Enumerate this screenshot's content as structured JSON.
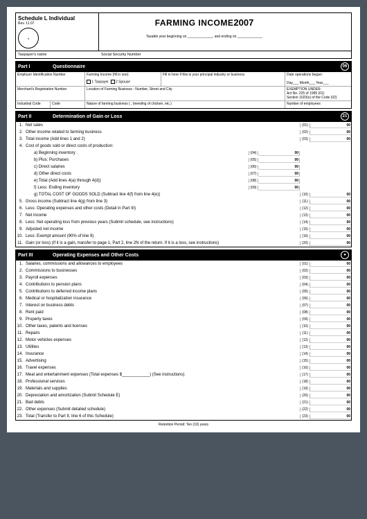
{
  "header": {
    "schedule": "Schedule L Individual",
    "rev": "Rev. 11.07",
    "title": "FARMING INCOME",
    "year": "2007",
    "taxable_year_prefix": "Taxable year beginning on",
    "taxable_year_middle": "and ending on"
  },
  "taxpayer": {
    "name_label": "Taxpayer's name",
    "ssn_label": "Social Security Number"
  },
  "part1": {
    "part_label": "Part I",
    "title": "Questionnaire",
    "badge": "06",
    "ein_label": "Employer Identification Number",
    "farming_income_label": "Farming Income (fill in one)",
    "opt1": "1 Taxpayer",
    "opt2": "2 Spouse",
    "principal_label": "Fill in here if this is your principal industry or business",
    "date_ops_label": "Date operations began:",
    "date_day": "Day",
    "date_month": "Month",
    "date_year": "Year",
    "merchant_label": "Merchant's Registration Number",
    "location_label": "Location of Farming Business - Number, Street and City",
    "exemption_label": "EXEMPTION UNDER:",
    "exemption_act": "Act No. 225 of 1995",
    "exemption_act_code": "(01)",
    "exemption_section": "Section 1023(s) of the Code",
    "exemption_section_code": "(02)",
    "industrial_label": "Industrial Code",
    "code_label": "Code",
    "nature_label": "Nature of farming business ( , breeding of chicken, etc.)",
    "employees_label": "Number of employees"
  },
  "part2": {
    "part_label": "Part II",
    "title": "Determination of Gain or Loss",
    "badge": "21",
    "lines": [
      {
        "n": "1.",
        "label": "Net sales",
        "code": "(01)",
        "amt": "00",
        "outer": true
      },
      {
        "n": "2.",
        "label": "Other income related to farming business",
        "code": "(02)",
        "amt": "00",
        "outer": true
      },
      {
        "n": "3.",
        "label": "Total income (Add lines 1 and 2)",
        "code": "(03)",
        "amt": "00",
        "outer": true
      },
      {
        "n": "4.",
        "label": "Cost of goods sold or direct costs of production:",
        "code": "",
        "amt": "",
        "outer": false,
        "noinner": true
      },
      {
        "n": "",
        "label": "a)  Beginning inventory  .",
        "code": "(04)",
        "amt": "00",
        "outer": false,
        "indent": true
      },
      {
        "n": "",
        "label": "b)  Plus: Purchases",
        "code": "(05)",
        "amt": "00",
        "outer": false,
        "indent": true
      },
      {
        "n": "",
        "label": "c)  Direct salaries",
        "code": "(06)",
        "amt": "00",
        "outer": false,
        "indent": true
      },
      {
        "n": "",
        "label": "d)  Other direct costs",
        "code": "(07)",
        "amt": "00",
        "outer": false,
        "indent": true
      },
      {
        "n": "",
        "label": "e)  Total (Add lines 4(a) through 4(d))",
        "code": "(08)",
        "amt": "00",
        "outer": false,
        "indent": true
      },
      {
        "n": "",
        "label": "f)  Less: Ending inventory",
        "code": "(09)",
        "amt": "00",
        "outer": false,
        "indent": true
      },
      {
        "n": "",
        "label": "g)  TOTAL COST OF GOODS SOLD (Subtract line 4(f) from line 4(e))",
        "code": "(10)",
        "amt": "00",
        "outer": true,
        "indent": true
      },
      {
        "n": "5.",
        "label": "Gross income (Subtract line 4(g) from line 3)",
        "code": "(11)",
        "amt": "00",
        "outer": true
      },
      {
        "n": "6.",
        "label": "Less: Operating expenses and other costs (Detail in Part III)",
        "code": "(12)",
        "amt": "00",
        "outer": true
      },
      {
        "n": "7.",
        "label": "Net income",
        "code": "(13)",
        "amt": "00",
        "outer": true
      },
      {
        "n": "8.",
        "label": "Less: Net operating loss from previous years (Submit schedule, see instructions)",
        "code": "(14)",
        "amt": "00",
        "outer": true
      },
      {
        "n": "9.",
        "label": "Adjusted net income",
        "code": "(15)",
        "amt": "00",
        "outer": true
      },
      {
        "n": "10.",
        "label": "Less: Exempt amount (90% of line 9)",
        "code": "(16)",
        "amt": "00",
        "outer": true
      },
      {
        "n": "11.",
        "label": "Gain (or loss) (If it is a gain, transfer to page 1, Part 2, line 2N of the return. If it is a loss, see instructions)",
        "code": "(20)",
        "amt": "00",
        "outer": true
      }
    ]
  },
  "part3": {
    "part_label": "Part III",
    "title": "Operating Expenses and Other Costs",
    "badge": "",
    "lines": [
      {
        "n": "1.",
        "label": "Salaries, commissions and allowances to employees",
        "code": "(01)",
        "amt": "00"
      },
      {
        "n": "2.",
        "label": "Commissions to businesses",
        "code": "(02)",
        "amt": "00"
      },
      {
        "n": "3.",
        "label": "Payroll expenses",
        "code": "(03)",
        "amt": "00"
      },
      {
        "n": "4.",
        "label": "Contributions to pension plans",
        "code": "(04)",
        "amt": "00"
      },
      {
        "n": "5.",
        "label": "Contributions to deferred income plans",
        "code": "(05)",
        "amt": "00"
      },
      {
        "n": "6.",
        "label": "Medical or hospitalization insurance",
        "code": "(06)",
        "amt": "00"
      },
      {
        "n": "7.",
        "label": "Interest on business debts",
        "code": "(07)",
        "amt": "00"
      },
      {
        "n": "8.",
        "label": "Rent paid",
        "code": "(08)",
        "amt": "00"
      },
      {
        "n": "9.",
        "label": "Property taxes",
        "code": "(09)",
        "amt": "00"
      },
      {
        "n": "10.",
        "label": "Other taxes, patents and licenses",
        "code": "(10)",
        "amt": "00"
      },
      {
        "n": "11.",
        "label": "Repairs",
        "code": "(11)",
        "amt": "00"
      },
      {
        "n": "12.",
        "label": "Motor vehicles expenses",
        "code": "(12)",
        "amt": "00"
      },
      {
        "n": "13.",
        "label": "Utilities",
        "code": "(13)",
        "amt": "00"
      },
      {
        "n": "14.",
        "label": "Insurance",
        "code": "(14)",
        "amt": "00"
      },
      {
        "n": "15.",
        "label": "Advertising",
        "code": "(15)",
        "amt": "00"
      },
      {
        "n": "16.",
        "label": "Travel expenses",
        "code": "(16)",
        "amt": "00"
      },
      {
        "n": "17.",
        "label": "Meal and entertainment expenses (Total expenses $____________) (See instructions)",
        "code": "(17)",
        "amt": "00"
      },
      {
        "n": "18.",
        "label": "Professional services",
        "code": "(18)",
        "amt": "00"
      },
      {
        "n": "19.",
        "label": "Materials and supplies",
        "code": "(19)",
        "amt": "00"
      },
      {
        "n": "20.",
        "label": "Depreciation and amortization (Submit Schedule E)",
        "code": "(20)",
        "amt": "00"
      },
      {
        "n": "21.",
        "label": "Bad debts",
        "code": "(21)",
        "amt": "00"
      },
      {
        "n": "22.",
        "label": "Other expenses (Submit detailed schedule)",
        "code": "(22)",
        "amt": "00"
      },
      {
        "n": "23.",
        "label": "Total (Transfer to Part II, line 6 of this Schedule)",
        "code": "(23)",
        "amt": "00"
      }
    ]
  },
  "retention": "Retention Period: Ten (10) years"
}
